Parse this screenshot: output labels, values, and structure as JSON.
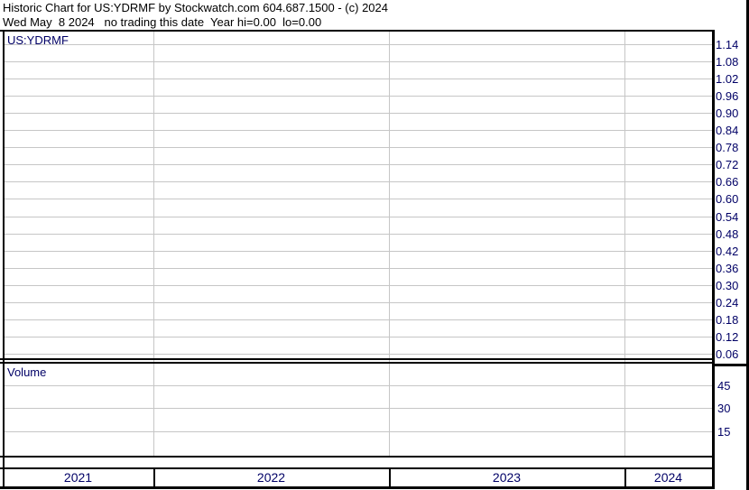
{
  "header": {
    "line1": "Historic Chart for US:YDRMF by Stockwatch.com 604.687.1500 - (c) 2024",
    "line2": "Wed May  8 2024   no trading this date  Year hi=0.00  lo=0.00"
  },
  "chart_data": {
    "type": "line",
    "title": "Historic Chart for US:YDRMF",
    "symbol": "US:YDRMF",
    "status_note": "no trading this date",
    "year_hi": "0.00",
    "year_lo": "0.00",
    "grid": true,
    "legend_position": "none",
    "price_panel": {
      "label": "US:YDRMF",
      "axis_side": "right",
      "tick_step": 0.06,
      "ticks": [
        "1.14",
        "1.08",
        "1.02",
        "0.96",
        "0.90",
        "0.84",
        "0.78",
        "0.72",
        "0.66",
        "0.60",
        "0.54",
        "0.48",
        "0.42",
        "0.36",
        "0.30",
        "0.24",
        "0.18",
        "0.12",
        "0.06"
      ],
      "series": []
    },
    "volume_panel": {
      "label": "Volume",
      "axis_side": "right",
      "ticks": [
        "45",
        "30",
        "15"
      ],
      "series": []
    },
    "x_axis": {
      "years": [
        "2021",
        "2022",
        "2023",
        "2024"
      ]
    }
  },
  "colors": {
    "grid": "#c6c6c6",
    "frame": "#000000",
    "label": "#000066",
    "header_text": "#000000",
    "background": "#ffffff"
  }
}
